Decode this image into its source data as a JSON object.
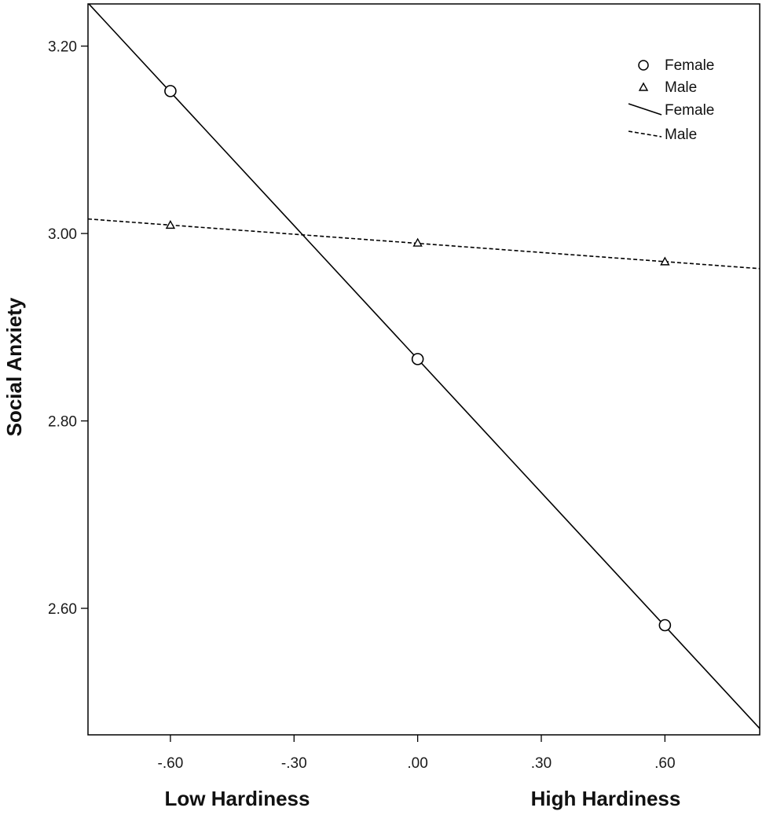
{
  "chart_data": {
    "type": "line",
    "title": "",
    "ylabel": "Social Anxiety",
    "xlabel_left": "Low Hardiness",
    "xlabel_right": "High Hardiness",
    "xlim": [
      -0.8,
      0.83
    ],
    "ylim": [
      2.465,
      3.245
    ],
    "x_ticks": [
      {
        "value": -0.6,
        "label": "-.60"
      },
      {
        "value": -0.3,
        "label": "-.30"
      },
      {
        "value": 0.0,
        "label": ".00"
      },
      {
        "value": 0.3,
        "label": ".30"
      },
      {
        "value": 0.6,
        "label": ".60"
      }
    ],
    "y_ticks": [
      {
        "value": 2.6,
        "label": "2.60"
      },
      {
        "value": 2.8,
        "label": "2.80"
      },
      {
        "value": 3.0,
        "label": "3.00"
      },
      {
        "value": 3.2,
        "label": "3.20"
      }
    ],
    "grid": false,
    "legend_position": "top-right",
    "series": [
      {
        "name": "Female",
        "marker": "circle",
        "line_style": "solid",
        "color": "#000000",
        "points": [
          {
            "x": -0.6,
            "y": 3.152
          },
          {
            "x": 0.0,
            "y": 2.866
          },
          {
            "x": 0.6,
            "y": 2.582
          }
        ],
        "fit": {
          "slope": -0.475,
          "intercept": 2.866
        }
      },
      {
        "name": "Male",
        "marker": "triangle",
        "line_style": "dashed",
        "color": "#000000",
        "points": [
          {
            "x": -0.6,
            "y": 3.009
          },
          {
            "x": 0.0,
            "y": 2.99
          },
          {
            "x": 0.6,
            "y": 2.97
          }
        ],
        "fit": {
          "slope": -0.0325,
          "intercept": 2.9895
        }
      }
    ],
    "legend": [
      {
        "label": "Female",
        "symbol": "circle"
      },
      {
        "label": "Male",
        "symbol": "triangle"
      },
      {
        "label": "Female",
        "symbol": "solid-line"
      },
      {
        "label": "Male",
        "symbol": "dashed-line"
      }
    ]
  }
}
